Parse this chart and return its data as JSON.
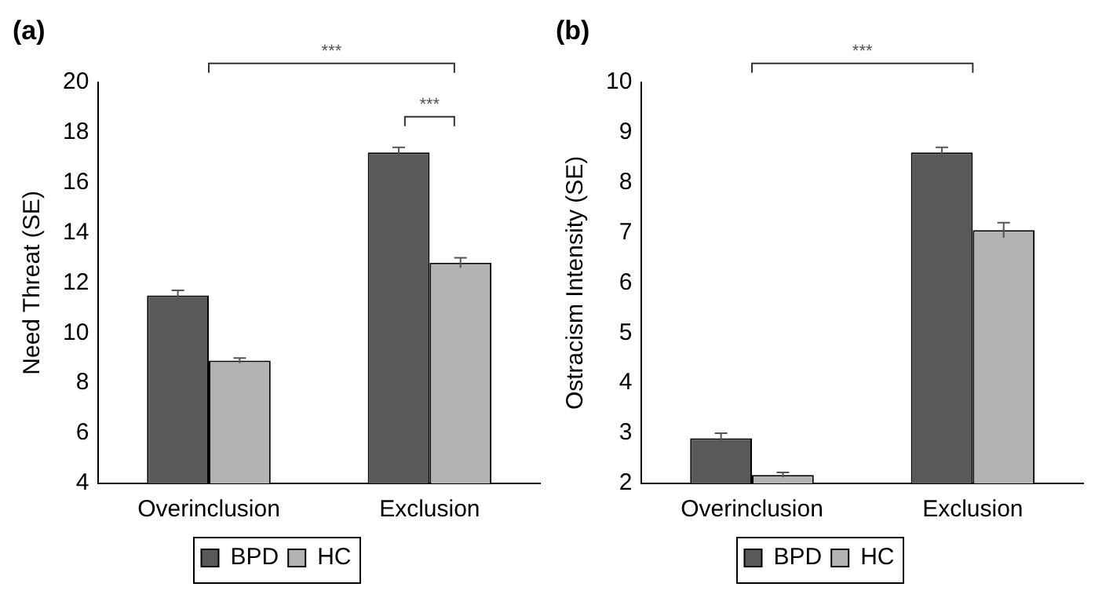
{
  "chart_data": [
    {
      "type": "bar",
      "title": "(a)",
      "ylabel": "Need Threat (SE)",
      "categories": [
        "Overinclusion",
        "Exclusion"
      ],
      "series": [
        {
          "name": "BPD",
          "color": "#595959",
          "values": [
            11.5,
            17.2
          ],
          "errors": [
            0.2,
            0.2
          ]
        },
        {
          "name": "HC",
          "color": "#b3b3b3",
          "values": [
            8.9,
            12.8
          ],
          "errors": [
            0.1,
            0.2
          ]
        }
      ],
      "ylim": [
        4,
        20
      ],
      "yticks": [
        4,
        6,
        8,
        10,
        12,
        14,
        16,
        18,
        20
      ],
      "grid": false,
      "legend": "bottom",
      "annotations": [
        "***",
        "***"
      ]
    },
    {
      "type": "bar",
      "title": "(b)",
      "ylabel": "Ostracism Intensity (SE)",
      "categories": [
        "Overinclusion",
        "Exclusion"
      ],
      "series": [
        {
          "name": "BPD",
          "color": "#595959",
          "values": [
            2.9,
            8.6
          ],
          "errors": [
            0.1,
            0.1
          ]
        },
        {
          "name": "HC",
          "color": "#b3b3b3",
          "values": [
            2.17,
            7.05
          ],
          "errors": [
            0.05,
            0.15
          ]
        }
      ],
      "ylim": [
        2,
        10
      ],
      "yticks": [
        2,
        3,
        4,
        5,
        6,
        7,
        8,
        9,
        10
      ],
      "grid": false,
      "legend": "bottom",
      "annotations": [
        "***"
      ]
    }
  ]
}
